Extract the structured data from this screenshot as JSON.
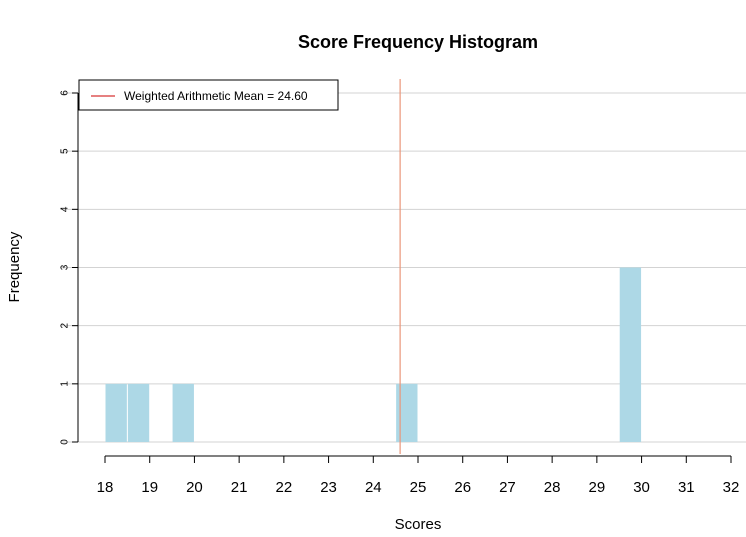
{
  "chart_data": {
    "type": "bar",
    "title": "Score Frequency Histogram",
    "xlabel": "Scores",
    "ylabel": "Frequency",
    "x_ticks": [
      "18",
      "19",
      "20",
      "21",
      "22",
      "23",
      "24",
      "25",
      "26",
      "27",
      "28",
      "29",
      "30",
      "31",
      "32"
    ],
    "y_ticks": [
      "0",
      "1",
      "2",
      "3",
      "4",
      "5",
      "6"
    ],
    "xlim": [
      18,
      32
    ],
    "ylim": [
      0,
      6
    ],
    "bin_width": 0.5,
    "bins": [
      {
        "x_start": 18.0,
        "x_end": 18.5,
        "count": 1
      },
      {
        "x_start": 18.5,
        "x_end": 19.0,
        "count": 1
      },
      {
        "x_start": 19.5,
        "x_end": 20.0,
        "count": 1
      },
      {
        "x_start": 24.5,
        "x_end": 25.0,
        "count": 1
      },
      {
        "x_start": 29.5,
        "x_end": 30.0,
        "count": 3
      }
    ],
    "mean_line": {
      "value": 24.6,
      "label": "Weighted Arithmetic Mean =  24.60"
    },
    "grid": true,
    "legend_position": "top-left",
    "colors": {
      "bar": "#add8e6",
      "mean_line": "#e9967a",
      "legend_line": "#cc0000",
      "grid": "#d3d3d3"
    }
  }
}
